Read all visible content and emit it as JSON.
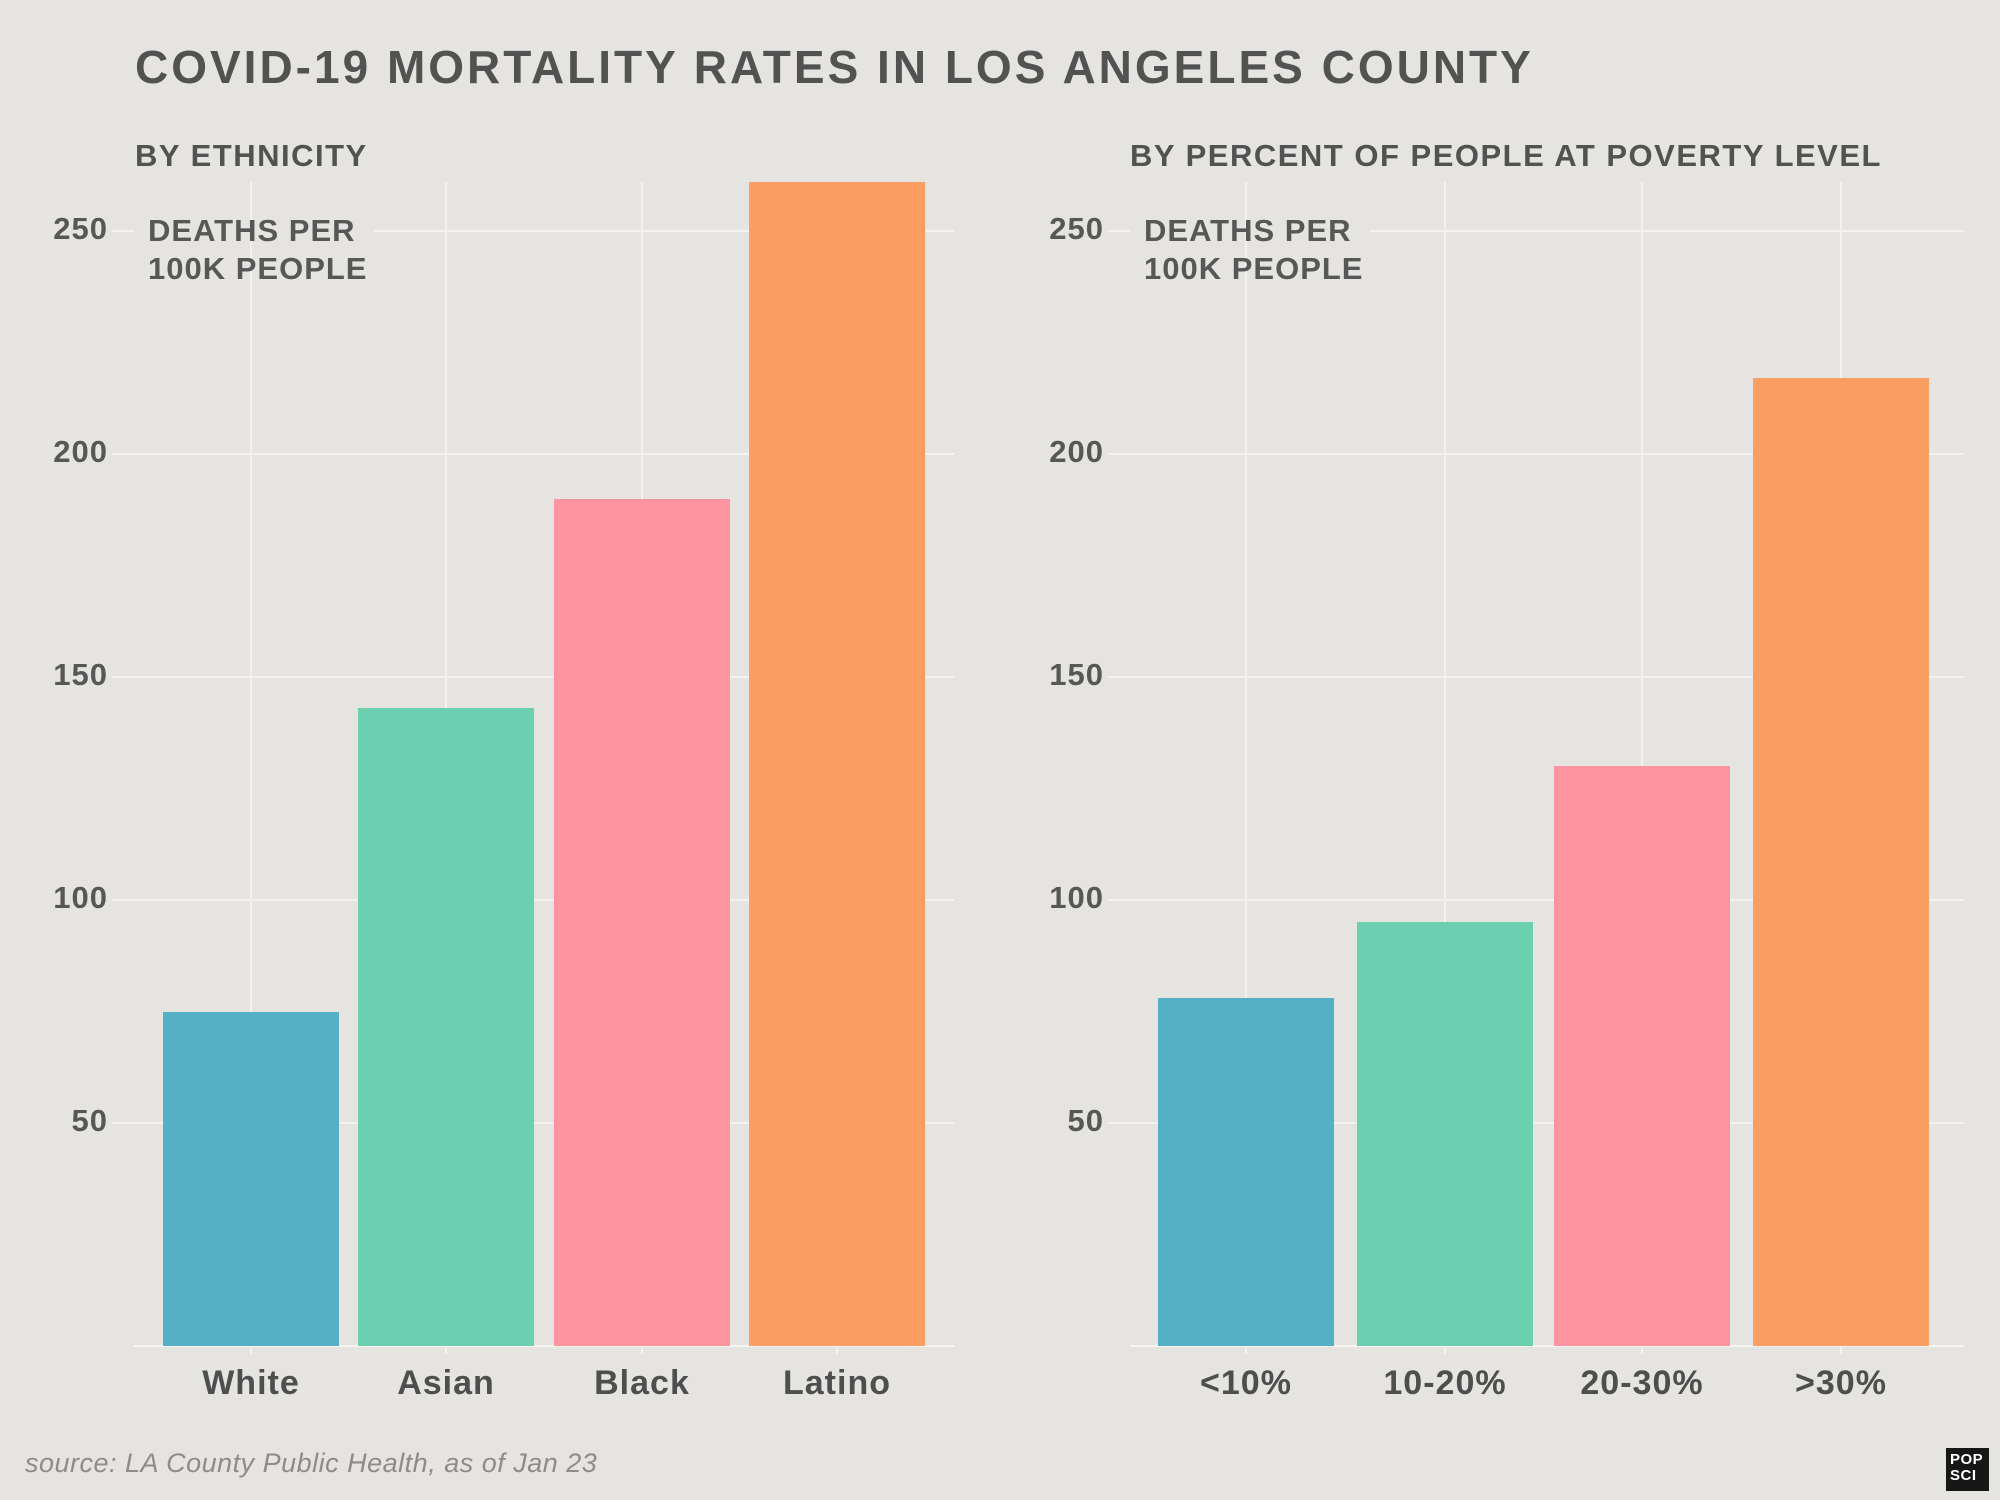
{
  "page": {
    "title": "COVID-19 MORTALITY RATES IN LOS ANGELES COUNTY",
    "source": "source: LA County Public Health, as of Jan 23",
    "logo_lines": [
      "POP",
      "SCI"
    ]
  },
  "style": {
    "background": "#e5e4e1",
    "gridline": "#f4f2ef",
    "heading_text": "#525252",
    "axis_text": "#575757",
    "category_text": "#4e4e4e",
    "source_text": "#8e8c8a",
    "logo_background": "#171717"
  },
  "chart_data": [
    {
      "type": "bar",
      "title": "BY ETHNICITY",
      "categories": [
        "White",
        "Asian",
        "Black",
        "Latino"
      ],
      "values": [
        75,
        143,
        190,
        261
      ],
      "bar_colors": [
        "#54b1c5",
        "#6ad0b0",
        "#fd94a0",
        "#fa9e63"
      ],
      "ylabel": "DEATHS PER 100K PEOPLE",
      "ylabel_lines": [
        "DEATHS PER",
        "100K PEOPLE"
      ],
      "yticks": [
        50,
        100,
        150,
        200,
        250
      ],
      "ylim": [
        0,
        261
      ],
      "xlabel": "",
      "grid": true,
      "legend": "none"
    },
    {
      "type": "bar",
      "title": "BY PERCENT OF PEOPLE AT POVERTY LEVEL",
      "categories": [
        "<10%",
        "10-20%",
        "20-30%",
        ">30%"
      ],
      "values": [
        78,
        95,
        130,
        217
      ],
      "bar_colors": [
        "#54b1c5",
        "#6ad0b0",
        "#fd94a0",
        "#fa9e63"
      ],
      "ylabel": "DEATHS PER 100K PEOPLE",
      "ylabel_lines": [
        "DEATHS PER",
        "100K PEOPLE"
      ],
      "yticks": [
        50,
        100,
        150,
        200,
        250
      ],
      "ylim": [
        0,
        261
      ],
      "xlabel": "",
      "grid": true,
      "legend": "none"
    }
  ]
}
